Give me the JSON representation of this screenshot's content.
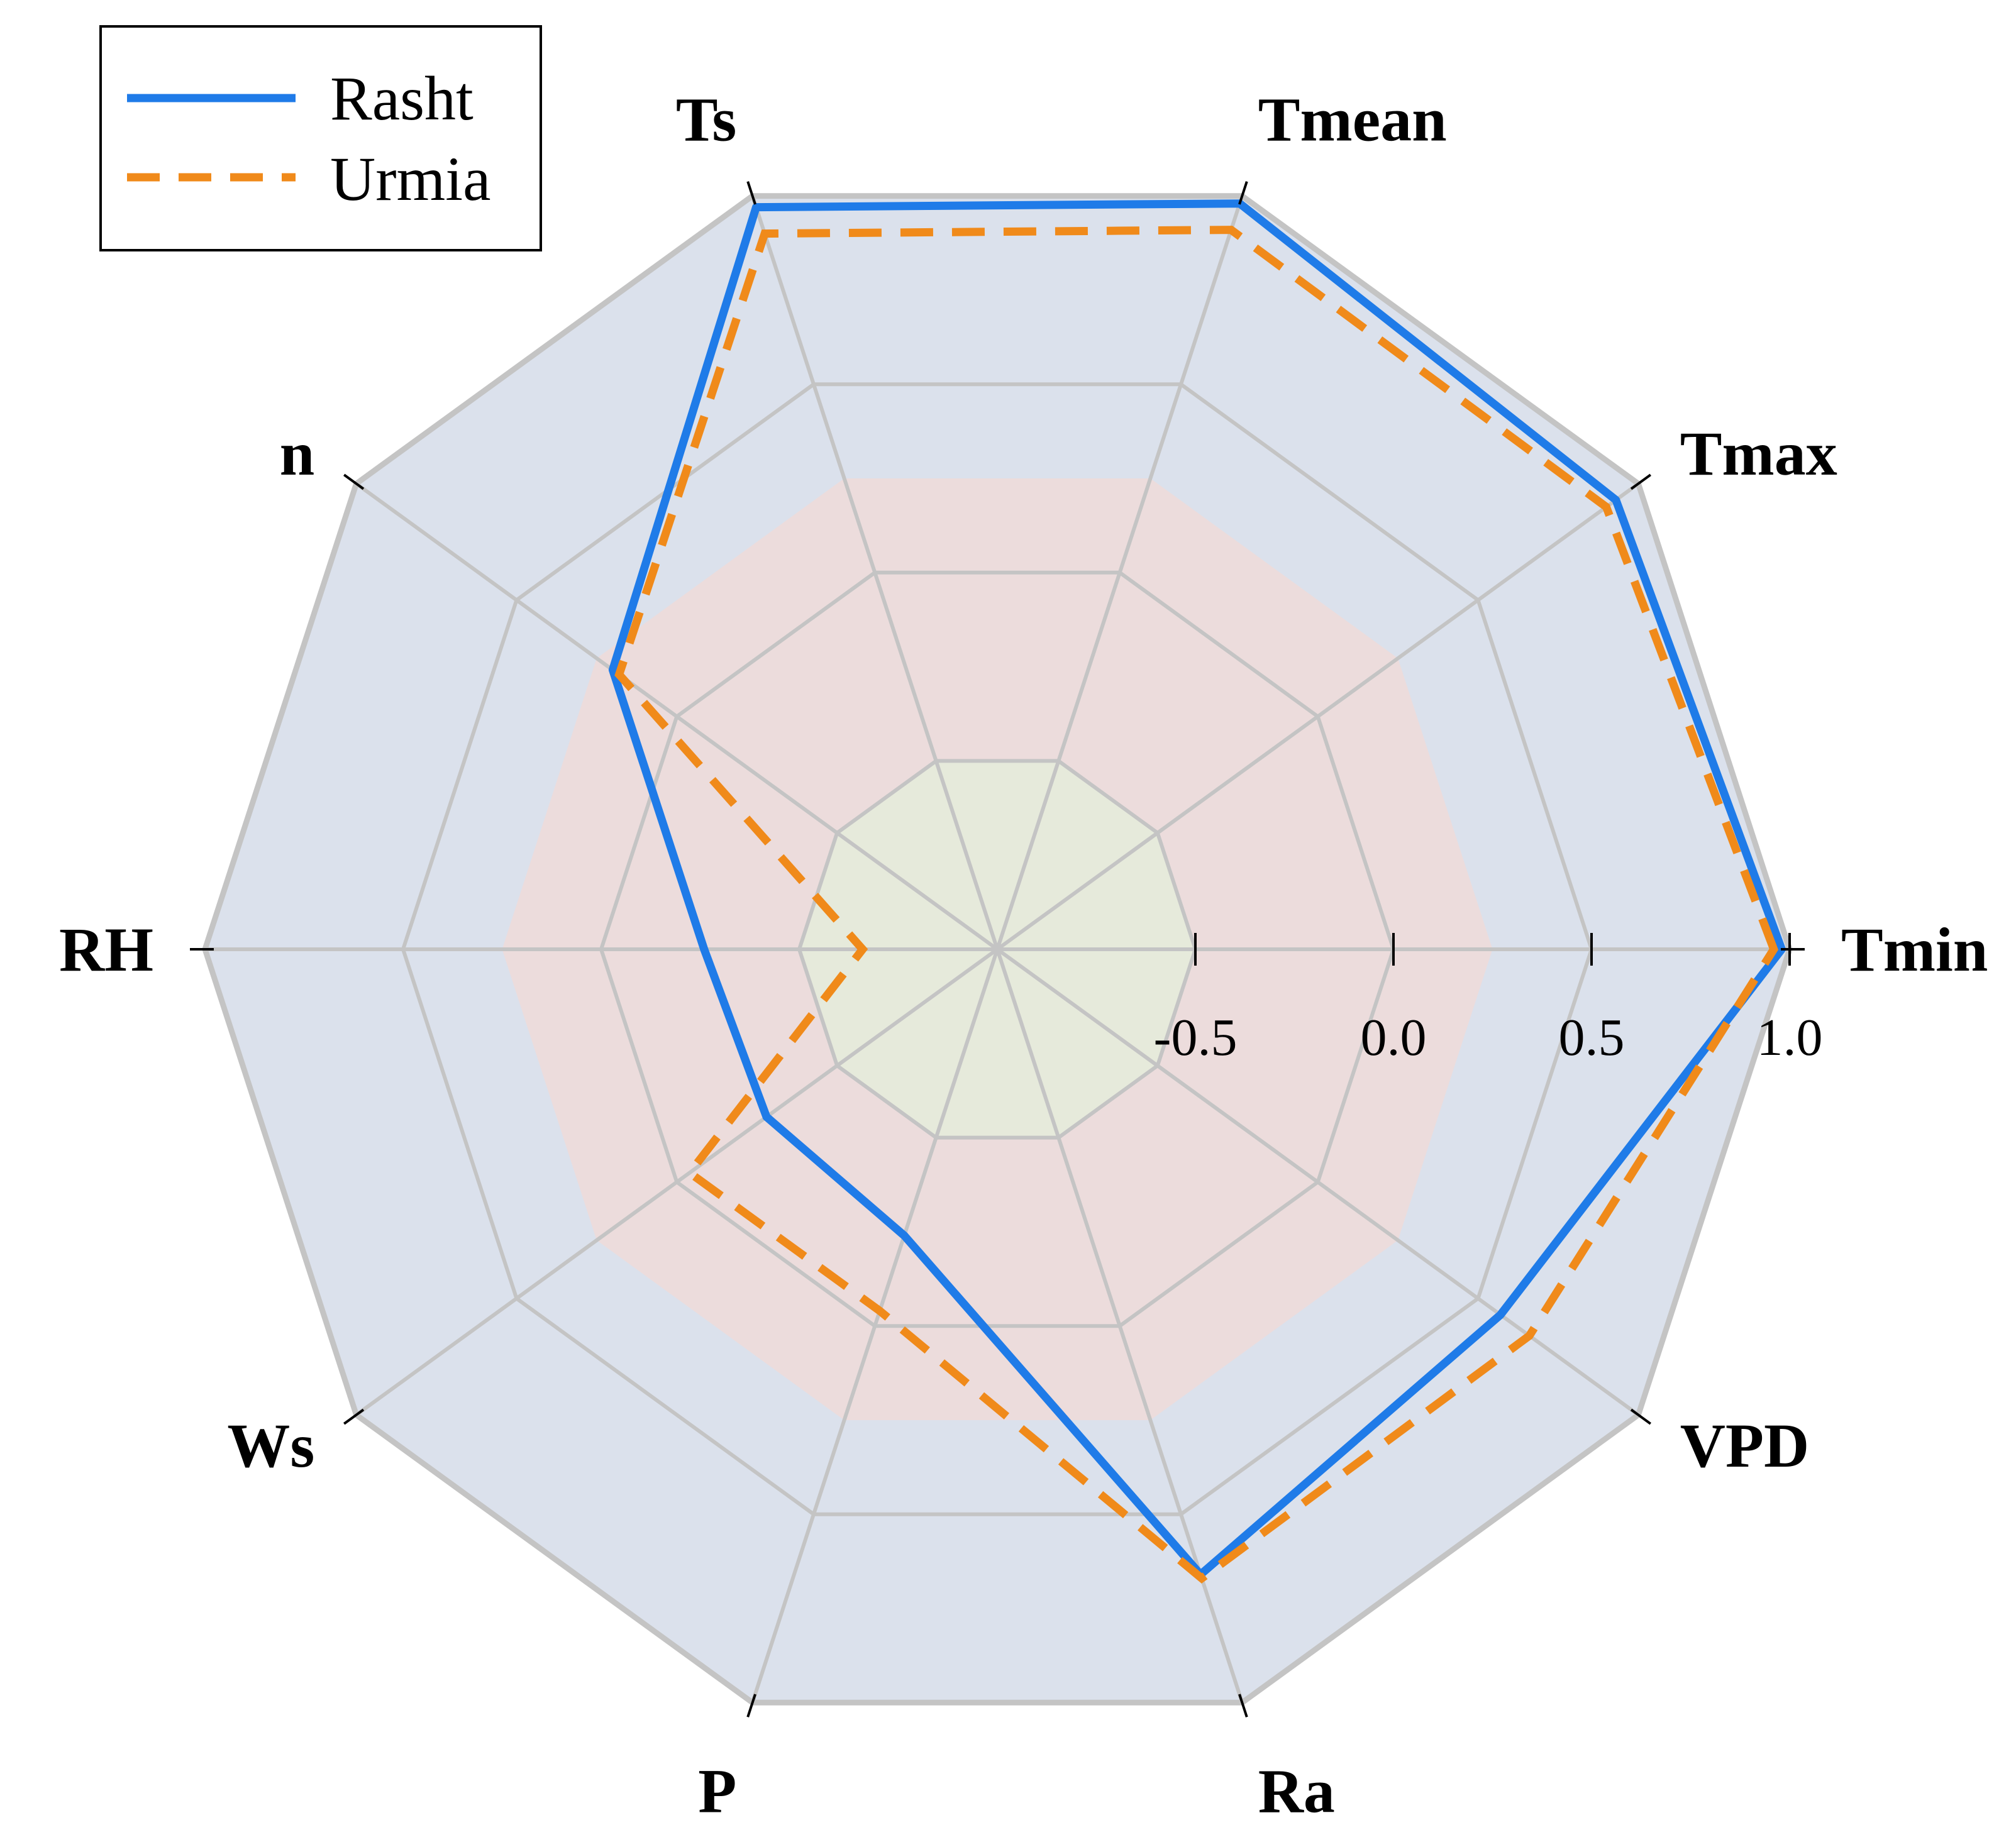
{
  "chart_data": {
    "type": "radar",
    "axes": [
      "Tmin",
      "Tmax",
      "Tmean",
      "Ts",
      "n",
      "RH",
      "Ws",
      "P",
      "Ra",
      "VPD"
    ],
    "rlim": [
      -1.0,
      1.0
    ],
    "ring_levels": [
      -0.5,
      0.0,
      0.5,
      1.0
    ],
    "tick_labels": [
      "-0.5",
      "0.0",
      "0.5",
      "1.0"
    ],
    "zones": [
      {
        "from": -1.0,
        "to": -0.5,
        "color": "#e6eadb"
      },
      {
        "from": -0.5,
        "to": 0.25,
        "color": "#ecdcdc"
      },
      {
        "from": 0.25,
        "to": 1.0,
        "color": "#dbe1ec"
      }
    ],
    "series": [
      {
        "name": "Rasht",
        "color": "#1f7be8",
        "style": "solid",
        "values": [
          0.98,
          0.93,
          0.98,
          0.97,
          0.2,
          -0.26,
          -0.28,
          -0.24,
          0.66,
          0.57
        ]
      },
      {
        "name": "Urmia",
        "color": "#f08a1a",
        "style": "dashed",
        "values": [
          0.96,
          0.9,
          0.91,
          0.9,
          0.18,
          -0.66,
          -0.04,
          -0.04,
          0.67,
          0.66
        ]
      }
    ],
    "legend": {
      "position": "top-left",
      "entries": [
        "Rasht",
        "Urmia"
      ]
    },
    "grid": true
  }
}
